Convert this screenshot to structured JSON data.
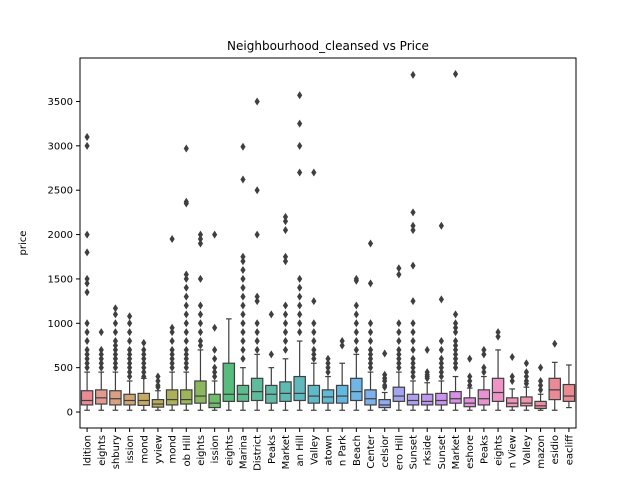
{
  "chart_data": {
    "type": "box",
    "title": "Neighbourhood_cleansed vs Price",
    "xlabel": "",
    "ylabel": "price",
    "ylim": [
      -180,
      3990
    ],
    "yticks": [
      0,
      500,
      1000,
      1500,
      2000,
      2500,
      3000,
      3500
    ],
    "grid": false,
    "legend": "none",
    "categories": [
      "Western Addition",
      "Pacific Heights",
      "Haight Ashbury",
      "Mission",
      "Richmond",
      "Bayview",
      "Inner Richmond",
      "Nob Hill",
      "Pacific Heights",
      "Mission",
      "Twin Heights",
      "Marina",
      "Financial District",
      "Twin Peaks",
      "Market",
      "Bernal Hill",
      "Noe Valley",
      "Chinatown",
      "Glen Park",
      "North Beach",
      "Civic Center",
      "Excelsior",
      "Potrero Hill",
      "Outer Sunset",
      "Parkside",
      "Inner Sunset",
      "Market",
      "Lakeshore",
      "Twin Peaks",
      "Russian Heights",
      "Ocean View",
      "Diamond Valley",
      "Amazon",
      "Presidio",
      "Seacliff"
    ],
    "tick_labels": [
      "ldition",
      "eights",
      "shbury",
      "ission",
      "mond",
      "yview",
      "mond",
      "ob Hill",
      "eights",
      "ission",
      "eights",
      "Marina",
      "District",
      "Peaks",
      "Market",
      "an Hill",
      "Valley",
      "atown",
      "n Park",
      "Beach",
      "Center",
      "celsior",
      "ero Hill",
      "Sunset",
      "rkside",
      "Sunset",
      "Market",
      "eshore",
      "Peaks",
      "eights",
      "n View",
      "Valley",
      "mazon",
      "esidio",
      "eacliff"
    ],
    "boxes": [
      {
        "q1": 80,
        "median": 130,
        "q3": 240,
        "whisker_low": 20,
        "whisker_high": 450,
        "outliers": [
          3100,
          3000,
          2000,
          1800,
          1500,
          1450,
          1350,
          1000,
          900,
          800,
          700,
          650,
          600,
          550,
          500
        ]
      },
      {
        "q1": 90,
        "median": 160,
        "q3": 250,
        "whisker_low": 20,
        "whisker_high": 450,
        "outliers": [
          900,
          700,
          650,
          600,
          550,
          500
        ]
      },
      {
        "q1": 80,
        "median": 150,
        "q3": 240,
        "whisker_low": 20,
        "whisker_high": 450,
        "outliers": [
          1170,
          1100,
          1000,
          900,
          800,
          750,
          700,
          650,
          600,
          550,
          500
        ]
      },
      {
        "q1": 80,
        "median": 130,
        "q3": 200,
        "whisker_low": 20,
        "whisker_high": 350,
        "outliers": [
          1080,
          1000,
          900,
          800,
          700,
          650,
          600,
          550,
          500,
          450,
          400
        ]
      },
      {
        "q1": 75,
        "median": 130,
        "q3": 210,
        "whisker_low": 20,
        "whisker_high": 380,
        "outliers": [
          780,
          700,
          650,
          600,
          550,
          500,
          450,
          400
        ]
      },
      {
        "q1": 55,
        "median": 90,
        "q3": 140,
        "whisker_low": 20,
        "whisker_high": 240,
        "outliers": [
          400,
          350,
          300,
          280
        ]
      },
      {
        "q1": 80,
        "median": 140,
        "q3": 250,
        "whisker_low": 20,
        "whisker_high": 450,
        "outliers": [
          1950,
          950,
          900,
          800,
          700,
          650,
          600,
          550,
          500
        ]
      },
      {
        "q1": 90,
        "median": 140,
        "q3": 250,
        "whisker_low": 20,
        "whisker_high": 450,
        "outliers": [
          2970,
          2370,
          2350,
          1550,
          1500,
          1400,
          1300,
          1200,
          1100,
          1000,
          900,
          800,
          700,
          650,
          600,
          550,
          500
        ]
      },
      {
        "q1": 100,
        "median": 180,
        "q3": 350,
        "whisker_low": 20,
        "whisker_high": 700,
        "outliers": [
          2000,
          1950,
          1900,
          1500,
          1200,
          1100,
          1000,
          900,
          800,
          750
        ]
      },
      {
        "q1": 50,
        "median": 100,
        "q3": 200,
        "whisker_low": 20,
        "whisker_high": 350,
        "outliers": [
          2000,
          950,
          700,
          600,
          500,
          450,
          400
        ]
      },
      {
        "q1": 120,
        "median": 200,
        "q3": 550,
        "whisker_low": 20,
        "whisker_high": 1050,
        "outliers": []
      },
      {
        "q1": 120,
        "median": 200,
        "q3": 300,
        "whisker_low": 20,
        "whisker_high": 500,
        "outliers": [
          2990,
          2620,
          1750,
          1700,
          1600,
          1500,
          1400,
          1300,
          1200,
          1100,
          1000,
          900,
          800,
          700,
          600
        ]
      },
      {
        "q1": 130,
        "median": 230,
        "q3": 380,
        "whisker_low": 20,
        "whisker_high": 650,
        "outliers": [
          3500,
          2500,
          2000,
          1300,
          1250,
          1000,
          900,
          800,
          700
        ]
      },
      {
        "q1": 100,
        "median": 200,
        "q3": 300,
        "whisker_low": 20,
        "whisker_high": 500,
        "outliers": [
          1100,
          650
        ]
      },
      {
        "q1": 120,
        "median": 210,
        "q3": 340,
        "whisker_low": 20,
        "whisker_high": 600,
        "outliers": [
          2200,
          2150,
          2050,
          1750,
          1700,
          1200,
          1100,
          1000,
          900,
          800,
          700
        ]
      },
      {
        "q1": 130,
        "median": 210,
        "q3": 400,
        "whisker_low": 20,
        "whisker_high": 800,
        "outliers": [
          3570,
          3250,
          3000,
          2700,
          1500,
          1400,
          1300,
          1200,
          1100,
          1000,
          900
        ]
      },
      {
        "q1": 100,
        "median": 180,
        "q3": 300,
        "whisker_low": 20,
        "whisker_high": 550,
        "outliers": [
          2700,
          1250,
          1000,
          900,
          800,
          700,
          650,
          600
        ]
      },
      {
        "q1": 100,
        "median": 170,
        "q3": 250,
        "whisker_low": 20,
        "whisker_high": 400,
        "outliers": [
          600,
          550,
          500,
          450
        ]
      },
      {
        "q1": 100,
        "median": 180,
        "q3": 300,
        "whisker_low": 20,
        "whisker_high": 550,
        "outliers": [
          800,
          750
        ]
      },
      {
        "q1": 130,
        "median": 230,
        "q3": 380,
        "whisker_low": 20,
        "whisker_high": 650,
        "outliers": [
          1500,
          1480,
          1200,
          1100,
          1000,
          900,
          800,
          700
        ]
      },
      {
        "q1": 80,
        "median": 150,
        "q3": 250,
        "whisker_low": 20,
        "whisker_high": 450,
        "outliers": [
          1900,
          1450,
          1000,
          900,
          800,
          700,
          650,
          600,
          550,
          500
        ]
      },
      {
        "q1": 50,
        "median": 80,
        "q3": 140,
        "whisker_low": 20,
        "whisker_high": 220,
        "outliers": [
          660,
          420,
          380,
          350,
          300,
          280
        ]
      },
      {
        "q1": 120,
        "median": 180,
        "q3": 280,
        "whisker_low": 20,
        "whisker_high": 450,
        "outliers": [
          1620,
          1550,
          1000,
          900,
          800,
          700,
          650,
          600,
          550,
          500
        ]
      },
      {
        "q1": 80,
        "median": 130,
        "q3": 200,
        "whisker_low": 20,
        "whisker_high": 350,
        "outliers": [
          3800,
          2250,
          2100,
          2050,
          1650,
          1250,
          1000,
          900,
          800,
          700,
          600,
          550,
          500,
          450,
          400
        ]
      },
      {
        "q1": 80,
        "median": 120,
        "q3": 200,
        "whisker_low": 20,
        "whisker_high": 330,
        "outliers": [
          700,
          450,
          420,
          400,
          380
        ]
      },
      {
        "q1": 80,
        "median": 130,
        "q3": 210,
        "whisker_low": 20,
        "whisker_high": 350,
        "outliers": [
          2100,
          1270,
          800,
          700,
          600,
          550,
          500,
          450,
          400
        ]
      },
      {
        "q1": 100,
        "median": 150,
        "q3": 230,
        "whisker_low": 20,
        "whisker_high": 400,
        "outliers": [
          3810,
          1100,
          1000,
          950,
          900,
          800,
          750,
          700,
          650,
          600,
          550,
          500
        ]
      },
      {
        "q1": 60,
        "median": 100,
        "q3": 160,
        "whisker_low": 20,
        "whisker_high": 270,
        "outliers": [
          600,
          400,
          350,
          300
        ]
      },
      {
        "q1": 80,
        "median": 150,
        "q3": 250,
        "whisker_low": 20,
        "whisker_high": 400,
        "outliers": [
          700,
          650,
          500,
          450
        ]
      },
      {
        "q1": 120,
        "median": 220,
        "q3": 380,
        "whisker_low": 20,
        "whisker_high": 700,
        "outliers": [
          900,
          850
        ]
      },
      {
        "q1": 60,
        "median": 100,
        "q3": 160,
        "whisker_low": 20,
        "whisker_high": 260,
        "outliers": [
          620,
          400,
          350
        ]
      },
      {
        "q1": 70,
        "median": 100,
        "q3": 170,
        "whisker_low": 20,
        "whisker_high": 280,
        "outliers": [
          550,
          450,
          400,
          350,
          320
        ]
      },
      {
        "q1": 40,
        "median": 70,
        "q3": 120,
        "whisker_low": 20,
        "whisker_high": 200,
        "outliers": [
          500,
          350,
          300,
          250
        ]
      },
      {
        "q1": 140,
        "median": 250,
        "q3": 380,
        "whisker_low": 20,
        "whisker_high": 560,
        "outliers": [
          770
        ]
      },
      {
        "q1": 120,
        "median": 180,
        "q3": 310,
        "whisker_low": 50,
        "whisker_high": 530,
        "outliers": []
      }
    ],
    "colors": [
      "#ea8a93",
      "#e29a8e",
      "#d9a082",
      "#cfa673",
      "#c6a965",
      "#b9ad5d",
      "#acb159",
      "#9db45b",
      "#8bb85f",
      "#6fbc6b",
      "#57bd7d",
      "#5cbc8e",
      "#5ebb9b",
      "#5fbba6",
      "#5ebab2",
      "#5ebabd",
      "#5fbac8",
      "#60bad4",
      "#62b8de",
      "#6fb6e7",
      "#7eb0ec",
      "#90abee",
      "#a3a5ef",
      "#b19ff0",
      "#bf99ef",
      "#cc94ee",
      "#d891e9",
      "#e290de",
      "#e992d2",
      "#ed93c5",
      "#ee95b8",
      "#ee96ac",
      "#ec8ea1",
      "#ea8a96",
      "#ea8a93"
    ]
  }
}
